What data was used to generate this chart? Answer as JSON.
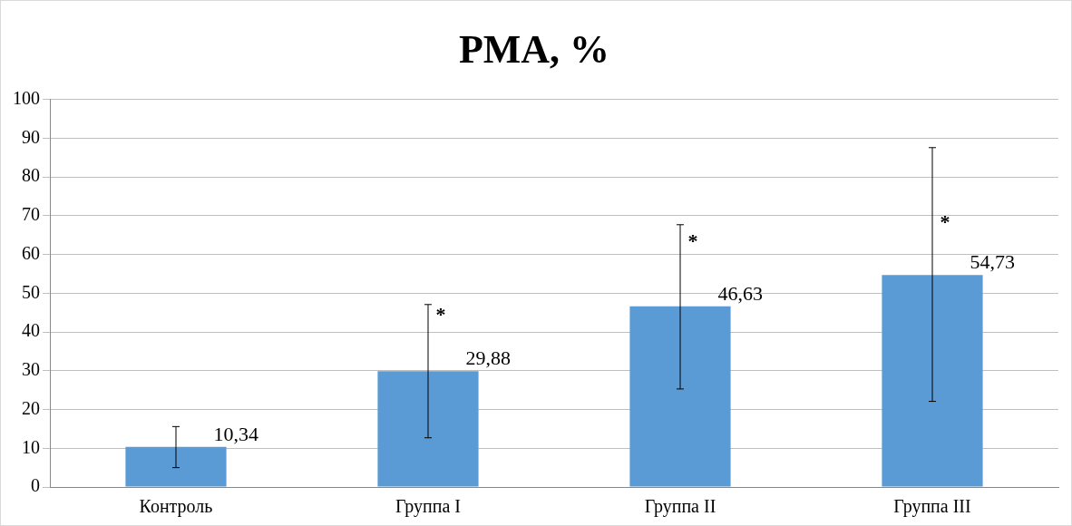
{
  "chart_data": {
    "type": "bar",
    "title": "PMA, %",
    "categories": [
      "Контроль",
      "Группа I",
      "Группа II",
      "Группа III"
    ],
    "values": [
      10.34,
      29.88,
      46.63,
      54.73
    ],
    "value_labels": [
      "10,34",
      "29,88",
      "46,63",
      "54,73"
    ],
    "errors": [
      [
        5.0,
        15.6
      ],
      [
        12.7,
        47.1
      ],
      [
        25.3,
        67.7
      ],
      [
        22.1,
        87.6
      ]
    ],
    "color": "#5b9bd5",
    "ylim": [
      0,
      100
    ],
    "yticks": [
      0,
      10,
      20,
      30,
      40,
      50,
      60,
      70,
      80,
      90,
      100
    ],
    "grid": "y",
    "annotations": [
      {
        "text": "*",
        "x": "Группа I",
        "y": 45
      },
      {
        "text": "*",
        "x": "Группа II",
        "y": 64
      },
      {
        "text": "*",
        "x": "Группа III",
        "y": 69
      }
    ]
  }
}
